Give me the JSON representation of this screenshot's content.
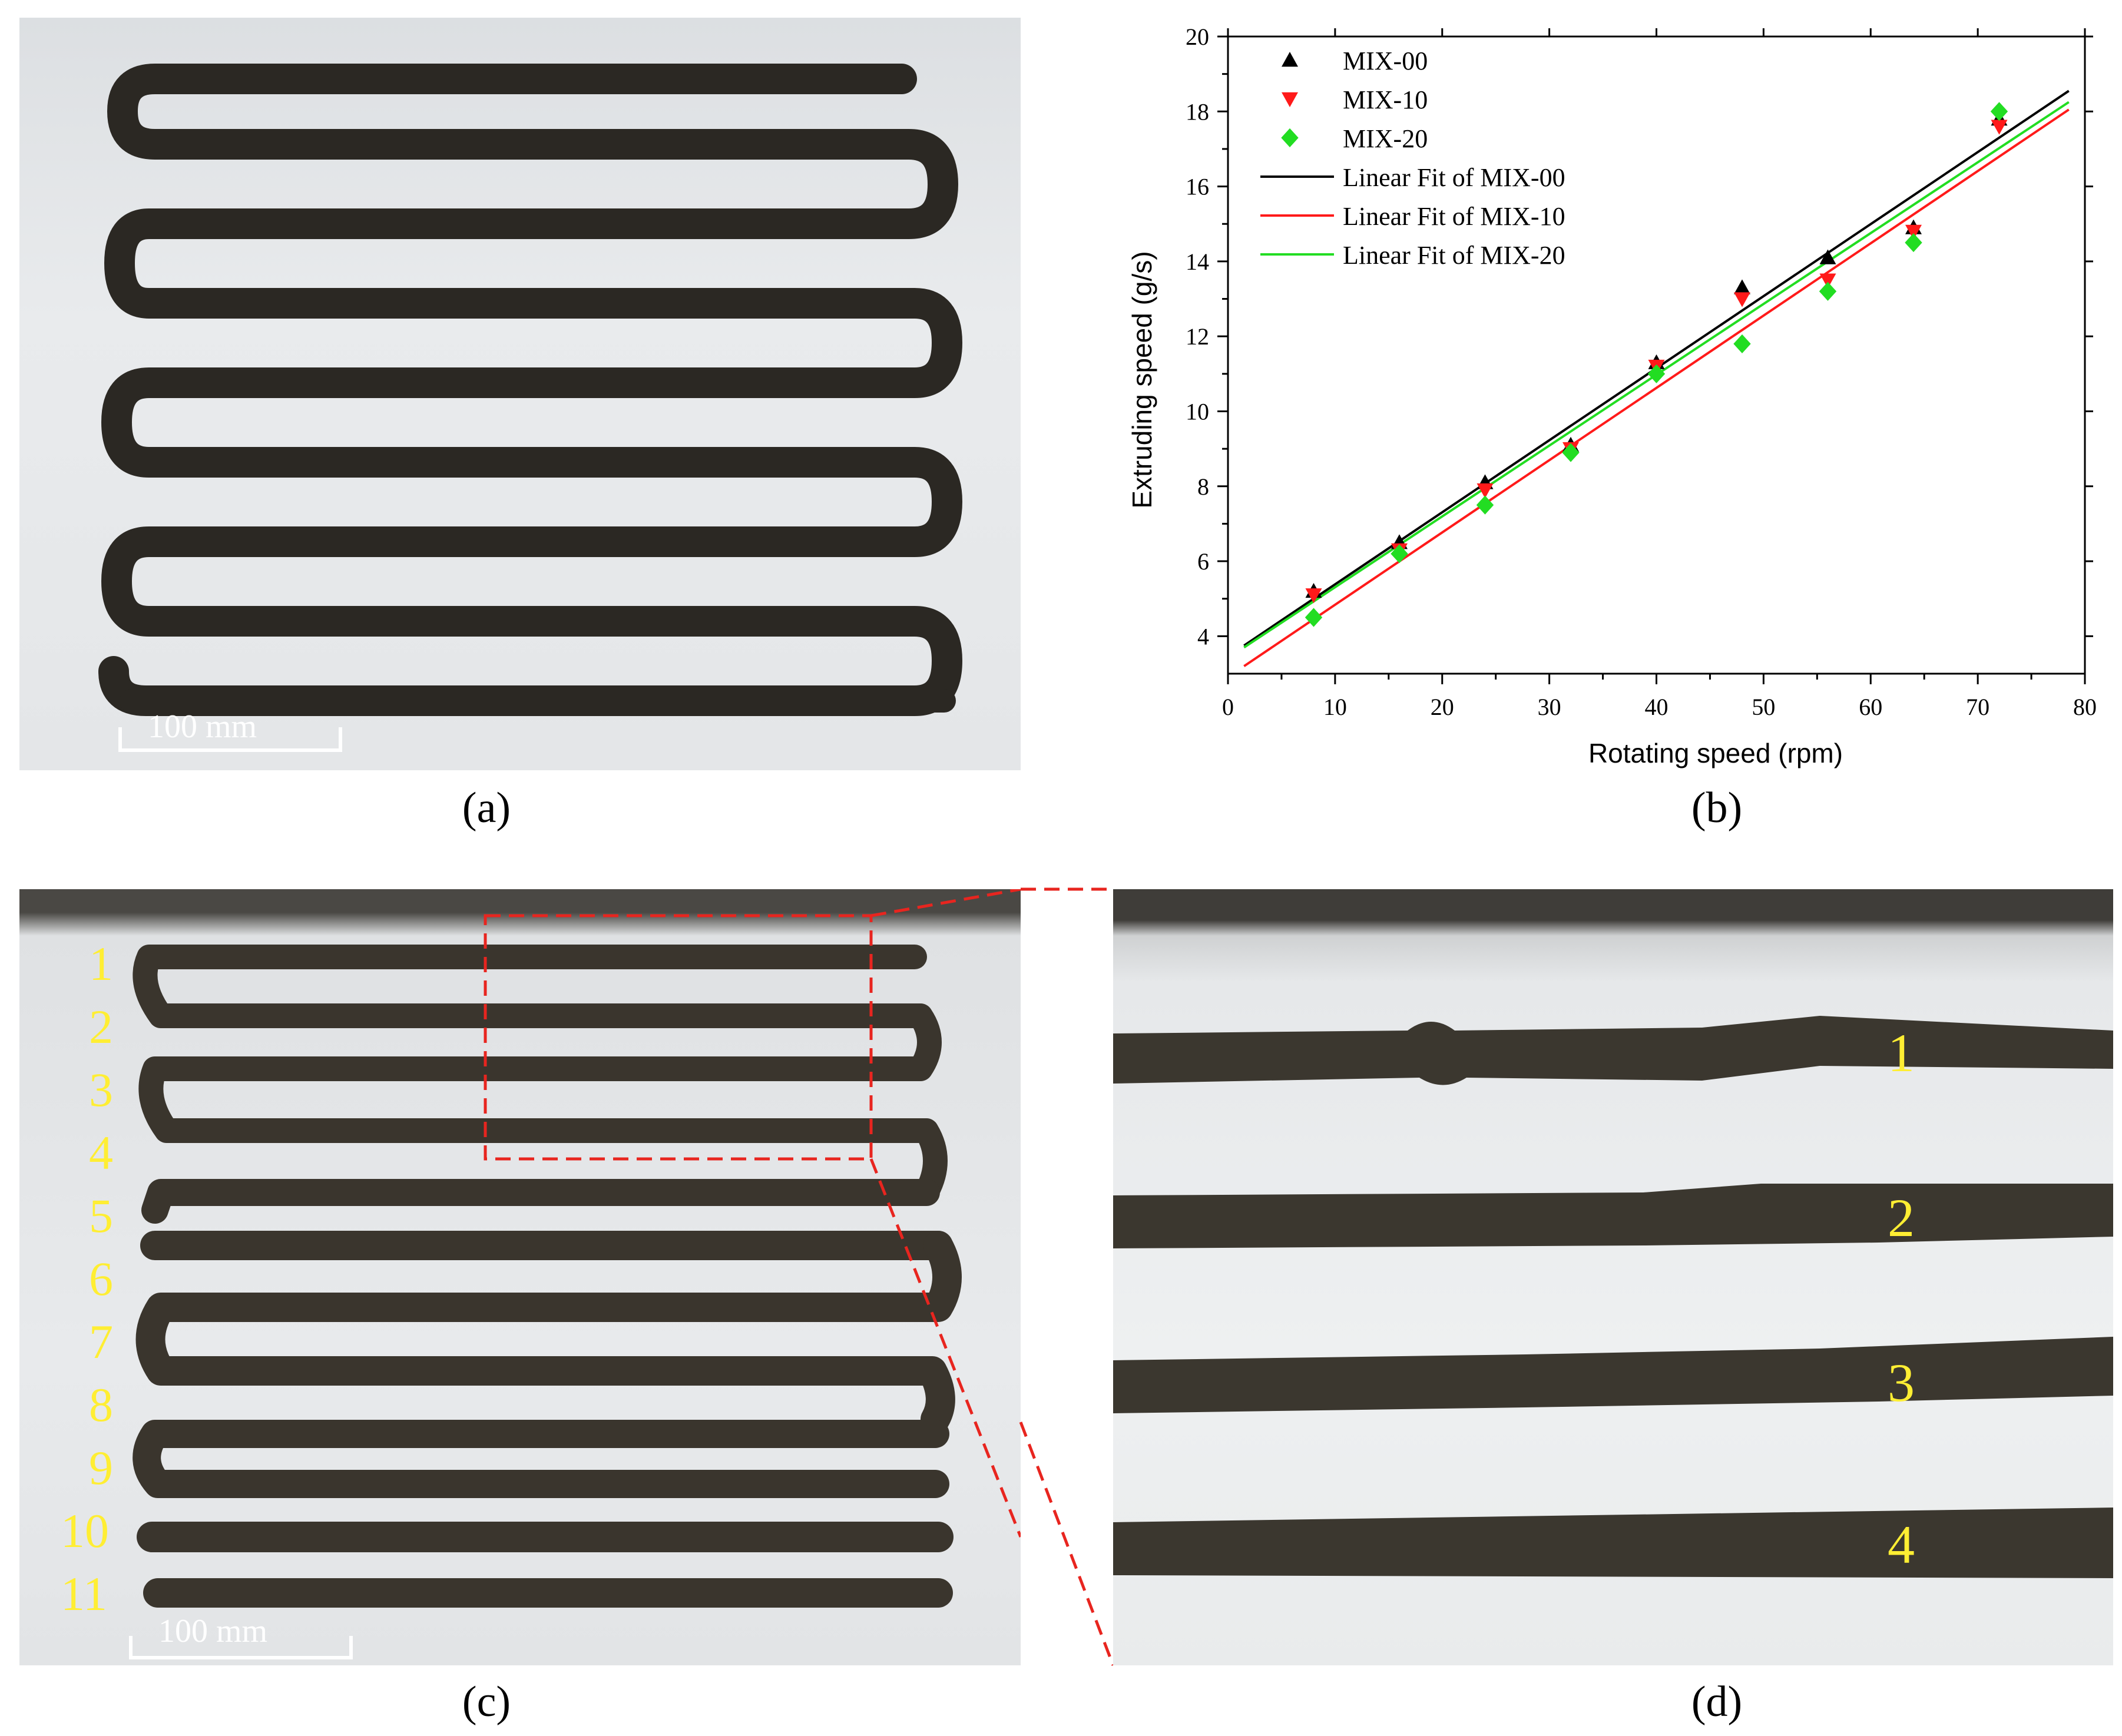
{
  "figure": {
    "captions": {
      "a": "(a)",
      "b": "(b)",
      "c": "(c)",
      "d": "(d)"
    },
    "panel_a": {
      "scale_label": "100 mm"
    },
    "panel_c": {
      "scale_label": "100 mm",
      "layer_labels": [
        "1",
        "2",
        "3",
        "4",
        "5",
        "6",
        "7",
        "8",
        "9",
        "10",
        "11"
      ],
      "highlight_color": "#e8251f",
      "label_color": "#ffee33"
    },
    "panel_d": {
      "layer_labels": [
        "1",
        "2",
        "3",
        "4"
      ]
    }
  },
  "chart_data": {
    "type": "scatter",
    "xlabel": "Rotating speed (rpm)",
    "ylabel": "Extruding speed (g/s)",
    "xlim": [
      0,
      80
    ],
    "ylim": [
      3,
      20
    ],
    "xticks": [
      0,
      10,
      20,
      30,
      40,
      50,
      60,
      70,
      80
    ],
    "yticks": [
      4,
      6,
      8,
      10,
      12,
      14,
      16,
      18,
      20
    ],
    "legend_position": "top-left",
    "grid": false,
    "series": [
      {
        "name": "MIX-00",
        "marker": "triangle-up",
        "color": "#000000",
        "x": [
          8,
          16,
          24,
          32,
          40,
          48,
          56,
          64,
          72
        ],
        "y": [
          5.2,
          6.5,
          8.1,
          9.1,
          11.3,
          13.3,
          14.1,
          14.9,
          17.8
        ]
      },
      {
        "name": "MIX-10",
        "marker": "triangle-down",
        "color": "#ff1a1a",
        "x": [
          8,
          16,
          24,
          32,
          40,
          48,
          56,
          64,
          72
        ],
        "y": [
          5.1,
          6.3,
          7.9,
          9.0,
          11.2,
          13.0,
          13.5,
          14.8,
          17.6
        ]
      },
      {
        "name": "MIX-20",
        "marker": "diamond",
        "color": "#22dd22",
        "x": [
          8,
          16,
          24,
          32,
          40,
          48,
          56,
          64,
          72
        ],
        "y": [
          4.5,
          6.2,
          7.5,
          8.9,
          11.0,
          11.8,
          13.2,
          14.5,
          18.0
        ]
      }
    ],
    "fits": [
      {
        "name": "Linear Fit of MIX-00",
        "color": "#000000",
        "x": [
          1.5,
          78.5
        ],
        "y": [
          3.75,
          18.55
        ]
      },
      {
        "name": "Linear Fit of MIX-10",
        "color": "#ff1a1a",
        "x": [
          1.5,
          78.5
        ],
        "y": [
          3.2,
          18.05
        ]
      },
      {
        "name": "Linear Fit of MIX-20",
        "color": "#22dd22",
        "x": [
          1.5,
          78.5
        ],
        "y": [
          3.7,
          18.25
        ]
      }
    ]
  }
}
